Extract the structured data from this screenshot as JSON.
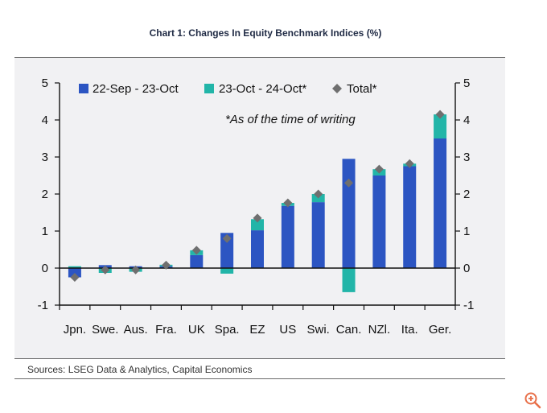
{
  "chart_data": {
    "type": "bar",
    "title": "Chart 1: Changes In Equity Benchmark Indices (%)",
    "annotation": "*As of the time of writing",
    "categories": [
      "Jpn.",
      "Swe.",
      "Aus.",
      "Fra.",
      "UK",
      "Spa.",
      "EZ",
      "US",
      "Swi.",
      "Can.",
      "NZl.",
      "Ita.",
      "Ger."
    ],
    "series": [
      {
        "name": "22-Sep - 23-Oct",
        "kind": "bar",
        "color": "#2c55c2",
        "values": [
          -0.25,
          0.08,
          0.05,
          0.05,
          0.35,
          0.95,
          1.02,
          1.68,
          1.78,
          2.95,
          2.5,
          2.75,
          3.5
        ]
      },
      {
        "name": "23-Oct - 24-Oct*",
        "kind": "bar",
        "color": "#22b5a8",
        "values": [
          0.05,
          -0.13,
          -0.1,
          0.04,
          0.13,
          -0.15,
          0.3,
          0.08,
          0.22,
          -0.65,
          0.17,
          0.07,
          0.65
        ]
      },
      {
        "name": "Total*",
        "kind": "marker",
        "color": "#6f6f6f",
        "values": [
          -0.25,
          -0.05,
          -0.05,
          0.08,
          0.48,
          0.8,
          1.35,
          1.76,
          2.0,
          2.3,
          2.67,
          2.82,
          4.15
        ]
      }
    ],
    "ylim": [
      -1,
      5
    ],
    "yticks": [
      -1,
      0,
      1,
      2,
      3,
      4,
      5
    ],
    "xlabel": "",
    "ylabel": "",
    "legend_position": "top"
  },
  "sources": "Sources: LSEG Data & Analytics, Capital Economics",
  "zoom_icon": "zoom-in-icon"
}
